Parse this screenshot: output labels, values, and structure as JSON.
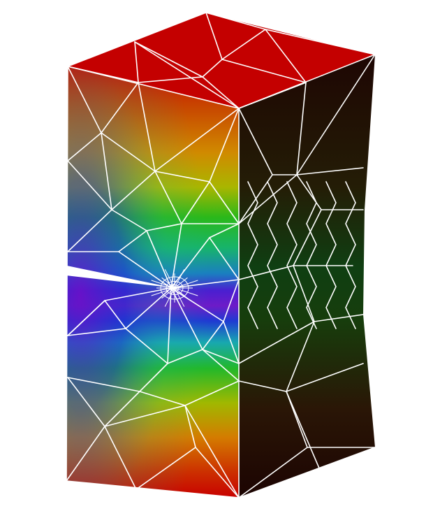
{
  "scene": {
    "subject": "fem-mesh-cracked-block",
    "colors": {
      "background": "#ffffff",
      "mesh_line": "#ffffff",
      "contour_high": "#c80000",
      "contour_orange": "#d97a00",
      "contour_yellow": "#a8b800",
      "contour_green": "#14b814",
      "contour_cyan": "#1aa7a7",
      "contour_blue": "#1d2fd0",
      "contour_violet": "#7a1fc8",
      "side_dark": "#1a0602",
      "side_green": "#123f10"
    }
  }
}
